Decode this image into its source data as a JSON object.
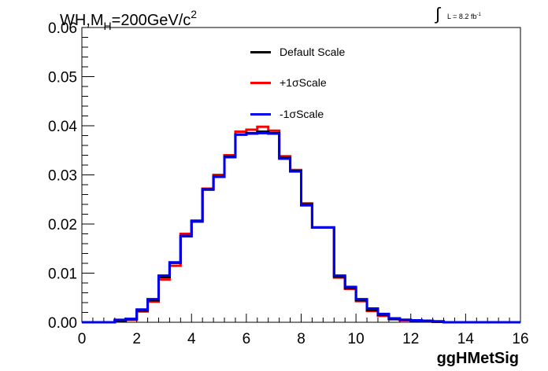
{
  "title": {
    "main": "WH,M",
    "sub": "H",
    "rest": "=200GeV/c",
    "sup": "2"
  },
  "luminosity": {
    "integral": "∫",
    "text": "L = 8.2 fb",
    "sup": "-1"
  },
  "chart_data": {
    "type": "line",
    "style": "step-histogram",
    "xlabel": "ggHMetSig",
    "ylabel": "",
    "xlim": [
      0,
      16
    ],
    "ylim": [
      0,
      0.06
    ],
    "x_ticks": [
      "0",
      "2",
      "4",
      "6",
      "8",
      "10",
      "12",
      "14",
      "16"
    ],
    "y_ticks": [
      "0.00",
      "0.01",
      "0.02",
      "0.03",
      "0.04",
      "0.05",
      "0.06"
    ],
    "bin_edges": [
      0,
      0.4,
      0.8,
      1.2,
      1.6,
      2.0,
      2.4,
      2.8,
      3.2,
      3.6,
      4.0,
      4.4,
      4.8,
      5.2,
      5.6,
      6.0,
      6.4,
      6.8,
      7.2,
      7.6,
      8.0,
      8.4,
      8.8,
      9.2,
      9.6,
      10.0,
      10.4,
      10.8,
      11.2,
      11.6,
      12.0,
      12.4,
      12.8,
      13.2,
      13.6,
      14.0,
      14.4,
      14.8,
      15.2,
      15.6,
      16.0
    ],
    "series": [
      {
        "name": "Default Scale",
        "color": "#000000",
        "values": [
          0,
          0,
          0,
          0.0003,
          0.0006,
          0.0024,
          0.0045,
          0.0092,
          0.0121,
          0.0175,
          0.0205,
          0.027,
          0.0297,
          0.0337,
          0.0382,
          0.0385,
          0.0388,
          0.0385,
          0.0335,
          0.0308,
          0.024,
          0.0193,
          0.0193,
          0.0093,
          0.007,
          0.0045,
          0.0025,
          0.0015,
          0.0007,
          0.0005,
          0.0003,
          0.0003,
          0.0001,
          0,
          0,
          0,
          0,
          0,
          0,
          0
        ]
      },
      {
        "name": "+1σScale",
        "color": "#ff0000",
        "values": [
          0,
          0,
          0,
          0.0004,
          0.0005,
          0.0022,
          0.0042,
          0.0087,
          0.0115,
          0.018,
          0.0207,
          0.0272,
          0.03,
          0.034,
          0.0388,
          0.0392,
          0.0398,
          0.039,
          0.0338,
          0.031,
          0.0242,
          0.0193,
          0.0193,
          0.0091,
          0.0068,
          0.0043,
          0.0023,
          0.0013,
          0.0006,
          0.0004,
          0.0003,
          0.0003,
          0.0001,
          0,
          0,
          0,
          0,
          0,
          0,
          0
        ]
      },
      {
        "name": "-1σScale",
        "color": "#0000ee",
        "values": [
          0,
          0,
          0,
          0.0005,
          0.0007,
          0.0026,
          0.0047,
          0.0095,
          0.0122,
          0.0176,
          0.0206,
          0.0271,
          0.0296,
          0.0336,
          0.0382,
          0.0384,
          0.0385,
          0.0384,
          0.0333,
          0.0307,
          0.0238,
          0.0193,
          0.0193,
          0.0095,
          0.0072,
          0.0047,
          0.0028,
          0.0017,
          0.0008,
          0.0005,
          0.0004,
          0.0003,
          0.0002,
          0,
          0,
          0,
          0,
          0,
          0,
          0
        ]
      }
    ],
    "legend_position": "top-center",
    "grid": false
  }
}
